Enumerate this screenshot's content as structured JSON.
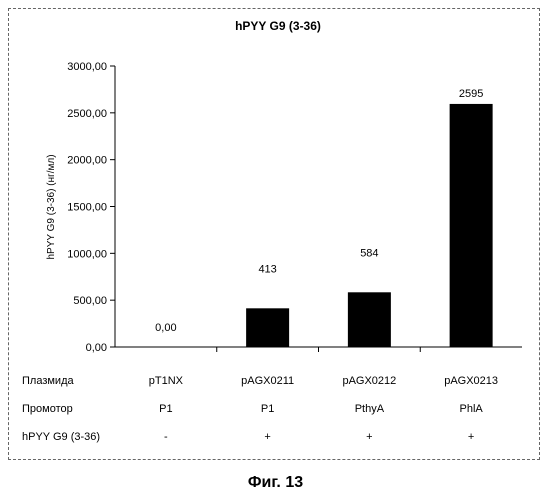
{
  "chart_data": {
    "type": "bar",
    "title": "hPYY G9 (3-36)",
    "ylabel": "hPYY G9 (3-36) (нг/мл)",
    "ylim": [
      0,
      3000
    ],
    "yticks": [
      "0,00",
      "500,00",
      "1000,00",
      "1500,00",
      "2000,00",
      "2500,00",
      "3000,00"
    ],
    "categories": [
      "pT1NX",
      "pAGX0211",
      "pAGX0212",
      "pAGX0213"
    ],
    "values": [
      0,
      413,
      584,
      2595
    ],
    "data_labels": [
      "0,00",
      "413",
      "584",
      "2595"
    ],
    "bar_color": "#000000",
    "grid": false,
    "table": {
      "rows": [
        {
          "label": "Плазмида",
          "cells": [
            "pT1NX",
            "pAGX0211",
            "pAGX0212",
            "pAGX0213"
          ]
        },
        {
          "label": "Промотор",
          "cells": [
            "P1",
            "P1",
            "PthyA",
            "PhlA"
          ]
        },
        {
          "label": "hPYY G9 (3-36)",
          "cells": [
            "-",
            "+",
            "+",
            "+"
          ]
        }
      ]
    }
  },
  "caption": "Фиг. 13"
}
